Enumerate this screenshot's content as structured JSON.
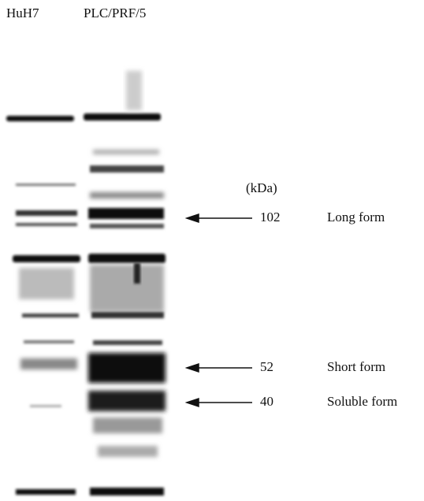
{
  "lanes": [
    "HuH7",
    "PLC/PRF/5"
  ],
  "unit": "(kDa)",
  "markers": [
    {
      "kda": "102",
      "label": "Long form"
    },
    {
      "kda": "52",
      "label": "Short form"
    },
    {
      "kda": "40",
      "label": "Soluble form"
    }
  ]
}
